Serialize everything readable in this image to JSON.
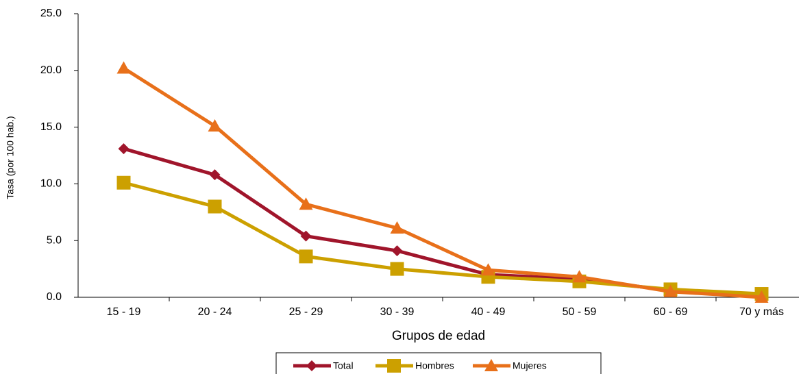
{
  "chart_data": {
    "type": "line",
    "x_label": "Grupos de edad",
    "y_label": "Tasa (por 100 hab.)",
    "categories": [
      "15 - 19",
      "20 - 24",
      "25 - 29",
      "30 - 39",
      "40 - 49",
      "50 - 59",
      "60 - 69",
      "70 y más"
    ],
    "series": [
      {
        "name": "Total",
        "color": "#a0152b",
        "marker": "diamond",
        "values": [
          13.1,
          10.8,
          5.4,
          4.1,
          2.0,
          1.6,
          0.6,
          0.1
        ]
      },
      {
        "name": "Hombres",
        "color": "#cca000",
        "marker": "square",
        "values": [
          10.1,
          8.0,
          3.6,
          2.5,
          1.8,
          1.4,
          0.7,
          0.3
        ]
      },
      {
        "name": "Mujeres",
        "color": "#e8701a",
        "marker": "triangle",
        "values": [
          20.2,
          15.1,
          8.2,
          6.1,
          2.4,
          1.8,
          0.5,
          0.0
        ]
      }
    ],
    "ylim": [
      0,
      25
    ],
    "yticks": [
      {
        "value": 0,
        "label": "0.0"
      },
      {
        "value": 5,
        "label": "5.0"
      },
      {
        "value": 10,
        "label": "10.0"
      },
      {
        "value": 15,
        "label": "15.0"
      },
      {
        "value": 20,
        "label": "20.0"
      },
      {
        "value": 25,
        "label": "25.0"
      }
    ],
    "grid": false,
    "legend": "bottom"
  }
}
